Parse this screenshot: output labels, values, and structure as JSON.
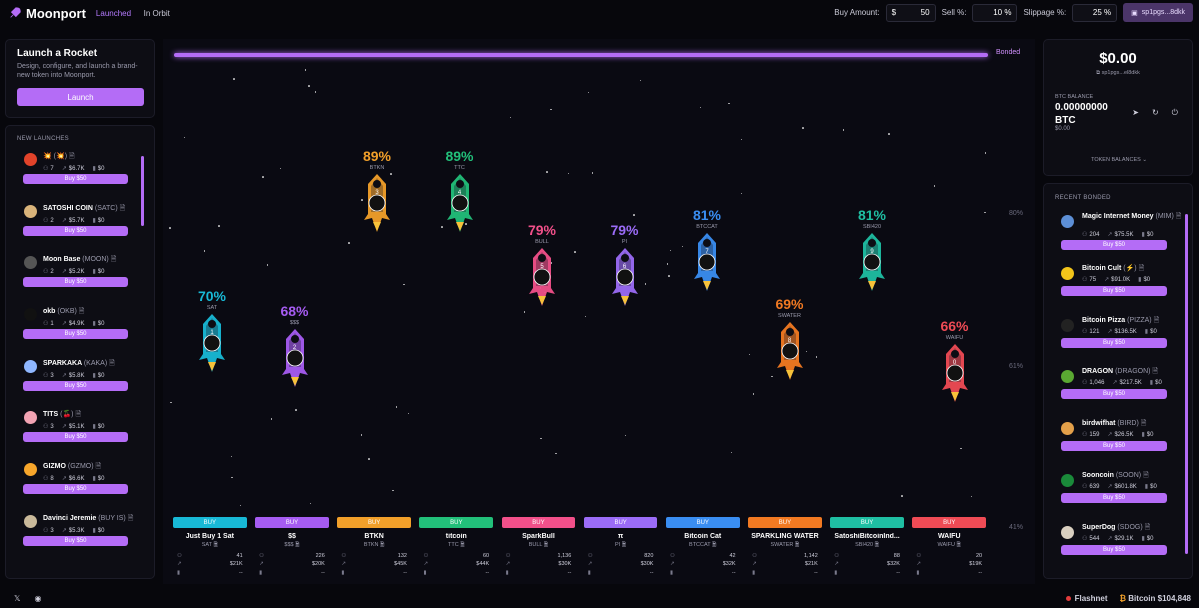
{
  "app": {
    "name": "Moonport",
    "tabs": [
      "Launched",
      "In Orbit"
    ]
  },
  "header": {
    "buy_label": "Buy Amount:",
    "buy_prefix": "$",
    "buy_value": "50",
    "sell_label": "Sell %:",
    "sell_value": "10",
    "sell_suffix": "%",
    "slip_label": "Slippage %:",
    "slip_value": "25",
    "slip_suffix": "%",
    "wallet": "sp1pgs...8dkk"
  },
  "launch": {
    "title": "Launch a Rocket",
    "desc": "Design, configure, and launch a brand-new token into Moonport.",
    "button": "Launch"
  },
  "new_launches": {
    "title": "NEW LAUNCHES",
    "buy_label": "Buy $50",
    "items": [
      {
        "name": "💥",
        "ticker": "(💥)",
        "holders": "7",
        "mcap": "$6.7K",
        "vol": "$0",
        "color": "#e2432a"
      },
      {
        "name": "SATOSHI COIN",
        "ticker": "(SATC)",
        "holders": "2",
        "mcap": "$5.7K",
        "vol": "$0",
        "color": "#d9b37a"
      },
      {
        "name": "Moon Base",
        "ticker": "(MOON)",
        "holders": "2",
        "mcap": "$5.2K",
        "vol": "$0",
        "color": "#555"
      },
      {
        "name": "okb",
        "ticker": "(OKB)",
        "holders": "1",
        "mcap": "$4.9K",
        "vol": "$0",
        "color": "#111"
      },
      {
        "name": "SPARKAKA",
        "ticker": "(KAKA)",
        "holders": "3",
        "mcap": "$5.8K",
        "vol": "$0",
        "color": "#8fb7ff"
      },
      {
        "name": "TITS",
        "ticker": "(🍒)",
        "holders": "3",
        "mcap": "$5.1K",
        "vol": "$0",
        "color": "#f2a3b3"
      },
      {
        "name": "GIZMO",
        "ticker": "(GZMO)",
        "holders": "8",
        "mcap": "$6.6K",
        "vol": "$0",
        "color": "#f7a62b"
      },
      {
        "name": "Davinci Jeremie",
        "ticker": "(BUY IS)",
        "holders": "3",
        "mcap": "$5.3K",
        "vol": "$0",
        "color": "#c9b99a"
      }
    ]
  },
  "chart": {
    "bonded_label": "Bonded",
    "gridlines": [
      "80%",
      "61%",
      "41%"
    ],
    "buy_label": "BUY",
    "tokens": [
      {
        "rank": "1",
        "pct": "70%",
        "ticker": "SAT",
        "name": "Just Buy 1 Sat",
        "color": "#18b9d6",
        "holders": "41",
        "mcap": "$21K",
        "vol": "--"
      },
      {
        "rank": "2",
        "pct": "68%",
        "ticker": "$$$",
        "name": "$$",
        "color": "#a65cf2",
        "holders": "226",
        "mcap": "$20K",
        "vol": "--"
      },
      {
        "rank": "3",
        "pct": "89%",
        "ticker": "BTKN",
        "name": "BTKN",
        "color": "#f2a02a",
        "holders": "132",
        "mcap": "$45K",
        "vol": "--"
      },
      {
        "rank": "4",
        "pct": "89%",
        "ticker": "TTC",
        "name": "titcoin",
        "color": "#22c07a",
        "holders": "60",
        "mcap": "$44K",
        "vol": "--"
      },
      {
        "rank": "5",
        "pct": "79%",
        "ticker": "BULL",
        "name": "SparkBull",
        "color": "#f2508a",
        "holders": "1,136",
        "mcap": "$30K",
        "vol": "--"
      },
      {
        "rank": "6",
        "pct": "79%",
        "ticker": "PI",
        "name": "π",
        "color": "#9b6cf7",
        "holders": "820",
        "mcap": "$30K",
        "vol": "--"
      },
      {
        "rank": "7",
        "pct": "81%",
        "ticker": "BTCCAT",
        "name": "Bitcoin Cat",
        "color": "#3a8ef2",
        "holders": "42",
        "mcap": "$32K",
        "vol": "--"
      },
      {
        "rank": "8",
        "pct": "69%",
        "ticker": "SWATER",
        "name": "SPARKLING WATER",
        "color": "#f27a22",
        "holders": "1,142",
        "mcap": "$21K",
        "vol": "--"
      },
      {
        "rank": "9",
        "pct": "81%",
        "ticker": "SBI420",
        "name": "SatoshiBitcoinInd...",
        "color": "#1fbfa3",
        "holders": "88",
        "mcap": "$32K",
        "vol": "--"
      },
      {
        "rank": "0",
        "pct": "66%",
        "ticker": "WAIFU",
        "name": "WAIFU",
        "color": "#ef4b55",
        "holders": "20",
        "mcap": "$19K",
        "vol": "--"
      }
    ]
  },
  "wallet_panel": {
    "total": "$0.00",
    "address": "sp1pgs...el8dkk",
    "btc_label": "BTC BALANCE",
    "btc_value": "0.00000000",
    "btc_unit": "BTC",
    "btc_usd": "$0.00",
    "token_balances": "TOKEN BALANCES"
  },
  "recent_bonded": {
    "title": "RECENT BONDED",
    "buy_label": "Buy $50",
    "items": [
      {
        "name": "Magic Internet Money",
        "ticker": "(MIM)",
        "holders": "204",
        "mcap": "$75.5K",
        "vol": "$0",
        "color": "#5d8fd6"
      },
      {
        "name": "Bitcoin Cult",
        "ticker": "(⚡)",
        "holders": "75",
        "mcap": "$91.0K",
        "vol": "$0",
        "color": "#f2c41a"
      },
      {
        "name": "Bitcoin Pizza",
        "ticker": "(PIZZA)",
        "holders": "121",
        "mcap": "$136.5K",
        "vol": "$0",
        "color": "#222"
      },
      {
        "name": "DRAGON",
        "ticker": "(DRAGON)",
        "holders": "1,046",
        "mcap": "$217.5K",
        "vol": "$0",
        "color": "#5aa832"
      },
      {
        "name": "birdwifhat",
        "ticker": "(BIRD)",
        "holders": "159",
        "mcap": "$26.5K",
        "vol": "$0",
        "color": "#e3a04a"
      },
      {
        "name": "Sooncoin",
        "ticker": "(SOON)",
        "holders": "639",
        "mcap": "$601.8K",
        "vol": "$0",
        "color": "#1a8a3a"
      },
      {
        "name": "SuperDog",
        "ticker": "(SDOG)",
        "holders": "544",
        "mcap": "$29.1K",
        "vol": "$0",
        "color": "#d9cfc0"
      }
    ]
  },
  "footer": {
    "x": "𝕏",
    "network": "Flashnet",
    "coin": "Bitcoin",
    "price": "$104,848"
  }
}
